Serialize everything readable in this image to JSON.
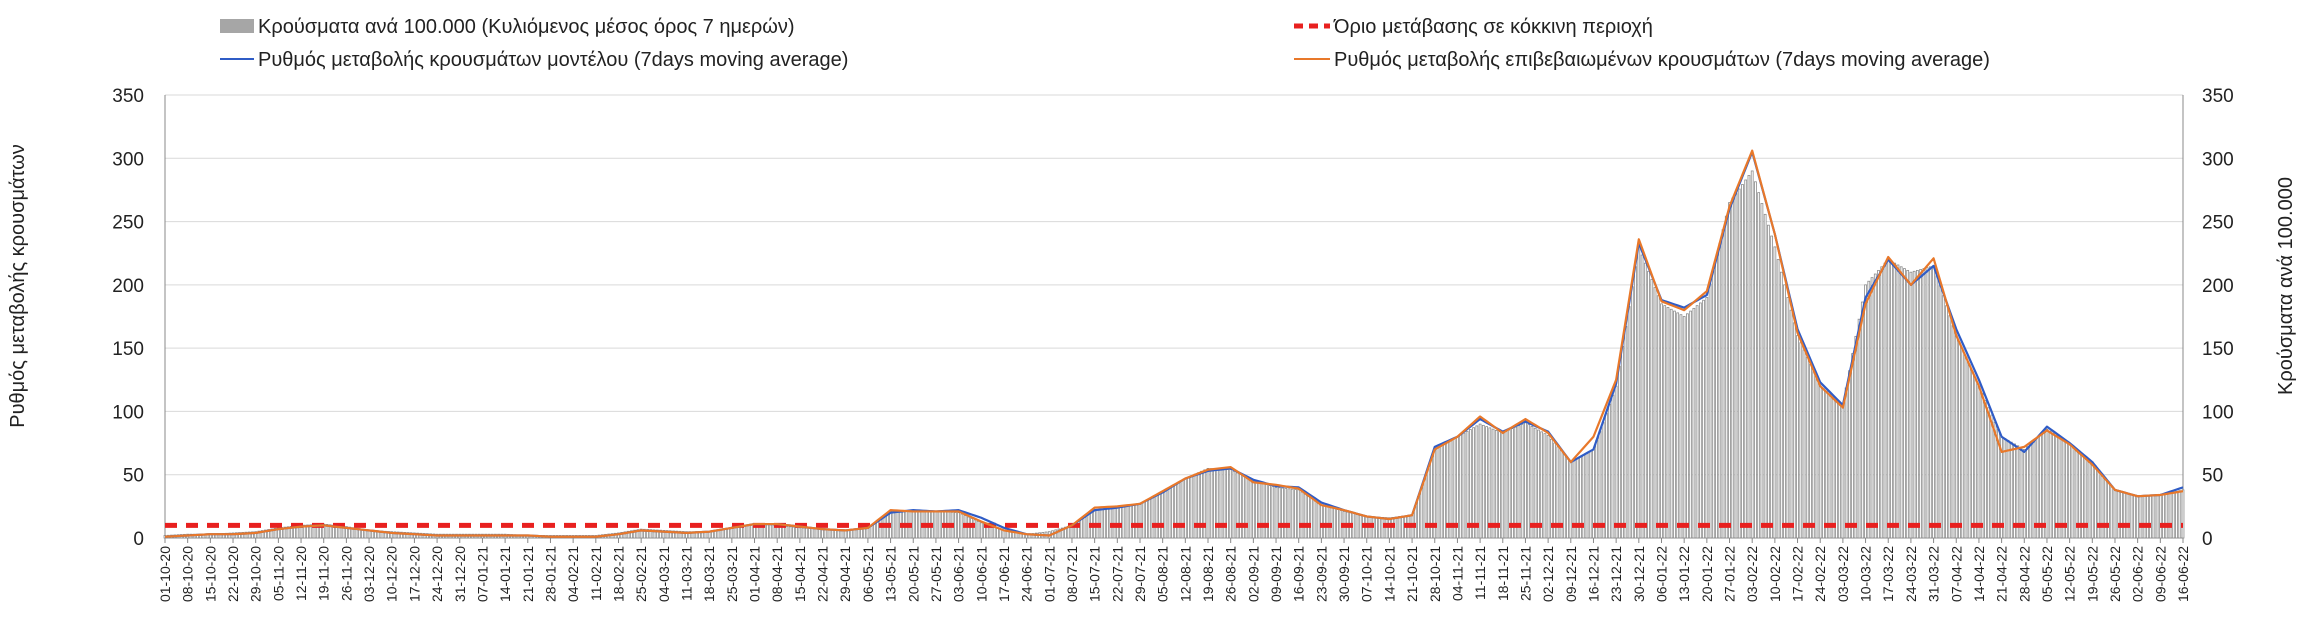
{
  "chart_data": {
    "type": "bar",
    "ylim_left": [
      0,
      350
    ],
    "ylim_right": [
      0,
      350
    ],
    "yticks": [
      0,
      50,
      100,
      150,
      200,
      250,
      300,
      350
    ],
    "ylabel_left": "Ρυθμός μεταβολής κρουσμάτων",
    "ylabel_right": "Κρούσματα ανά 100.000",
    "grid": true,
    "legend_position": "top",
    "legend": {
      "bars": "Κρούσματα ανά 100.000 (Κυλιόμενος μέσος όρος 7 ημερών)",
      "threshold": "Όριο μετάβασης σε κόκκινη περιοχή",
      "model": "Ρυθμός μεταβολής κρουσμάτων μοντέλου (7days moving average)",
      "confirmed": "Ρυθμός μεταβολής επιβεβαιωμένων κρουσμάτων (7days moving average)"
    },
    "x_labels": [
      "01-10-20",
      "08-10-20",
      "15-10-20",
      "22-10-20",
      "29-10-20",
      "05-11-20",
      "12-11-20",
      "19-11-20",
      "26-11-20",
      "03-12-20",
      "10-12-20",
      "17-12-20",
      "24-12-20",
      "31-12-20",
      "07-01-21",
      "14-01-21",
      "21-01-21",
      "28-01-21",
      "04-02-21",
      "11-02-21",
      "18-02-21",
      "25-02-21",
      "04-03-21",
      "11-03-21",
      "18-03-21",
      "25-03-21",
      "01-04-21",
      "08-04-21",
      "15-04-21",
      "22-04-21",
      "29-04-21",
      "06-05-21",
      "13-05-21",
      "20-05-21",
      "27-05-21",
      "03-06-21",
      "10-06-21",
      "17-06-21",
      "24-06-21",
      "01-07-21",
      "08-07-21",
      "15-07-21",
      "22-07-21",
      "29-07-21",
      "05-08-21",
      "12-08-21",
      "19-08-21",
      "26-08-21",
      "02-09-21",
      "09-09-21",
      "16-09-21",
      "23-09-21",
      "30-09-21",
      "07-10-21",
      "14-10-21",
      "21-10-21",
      "28-10-21",
      "04-11-21",
      "11-11-21",
      "18-11-21",
      "25-11-21",
      "02-12-21",
      "09-12-21",
      "16-12-21",
      "23-12-21",
      "30-12-21",
      "06-01-22",
      "13-01-22",
      "20-01-22",
      "27-01-22",
      "03-02-22",
      "10-02-22",
      "17-02-22",
      "24-02-22",
      "03-03-22",
      "10-03-22",
      "17-03-22",
      "24-03-22",
      "31-03-22",
      "07-04-22",
      "14-04-22",
      "21-04-22",
      "28-04-22",
      "05-05-22",
      "12-05-22",
      "19-05-22",
      "26-05-22",
      "02-06-22",
      "09-06-22",
      "16-06-22"
    ],
    "bars_weekly": [
      2,
      3,
      3,
      4,
      5,
      8,
      10,
      11,
      9,
      6,
      5,
      4,
      3,
      3,
      3,
      3,
      2,
      2,
      2,
      2,
      4,
      7,
      6,
      5,
      5,
      8,
      11,
      10,
      8,
      7,
      6,
      8,
      21,
      22,
      21,
      20,
      12,
      6,
      3,
      5,
      10,
      22,
      25,
      27,
      36,
      47,
      55,
      54,
      45,
      40,
      38,
      26,
      21,
      17,
      16,
      18,
      70,
      80,
      90,
      83,
      91,
      81,
      60,
      70,
      120,
      230,
      185,
      175,
      190,
      265,
      290,
      230,
      160,
      120,
      105,
      200,
      220,
      210,
      215,
      160,
      120,
      80,
      70,
      86,
      75,
      60,
      38,
      33,
      34,
      38
    ],
    "threshold": 10,
    "model_weekly": [
      1,
      2,
      3,
      3,
      4,
      7,
      9,
      10,
      8,
      6,
      4,
      3,
      2,
      2,
      2,
      2,
      2,
      1,
      1,
      1,
      3,
      6,
      5,
      4,
      5,
      8,
      11,
      11,
      9,
      7,
      6,
      8,
      20,
      22,
      21,
      22,
      16,
      8,
      3,
      2,
      10,
      22,
      24,
      27,
      36,
      47,
      53,
      55,
      46,
      41,
      40,
      28,
      22,
      17,
      15,
      18,
      72,
      80,
      94,
      84,
      92,
      84,
      60,
      70,
      122,
      233,
      188,
      182,
      192,
      260,
      305,
      240,
      165,
      123,
      105,
      190,
      220,
      200,
      215,
      165,
      125,
      80,
      68,
      88,
      75,
      60,
      38,
      33,
      34,
      40
    ],
    "confirmed_weekly": [
      1,
      2,
      3,
      3,
      4,
      7,
      9,
      10,
      8,
      6,
      4,
      3,
      2,
      2,
      2,
      2,
      2,
      1,
      1,
      1,
      3,
      6,
      5,
      4,
      5,
      8,
      11,
      11,
      9,
      7,
      6,
      8,
      22,
      21,
      21,
      21,
      13,
      6,
      3,
      2,
      10,
      24,
      25,
      27,
      37,
      47,
      54,
      56,
      44,
      42,
      39,
      26,
      22,
      17,
      15,
      18,
      70,
      80,
      96,
      83,
      94,
      83,
      60,
      80,
      125,
      236,
      187,
      180,
      195,
      262,
      306,
      240,
      162,
      120,
      103,
      185,
      222,
      200,
      221,
      160,
      120,
      68,
      72,
      85,
      74,
      58,
      38,
      33,
      34,
      37
    ]
  }
}
